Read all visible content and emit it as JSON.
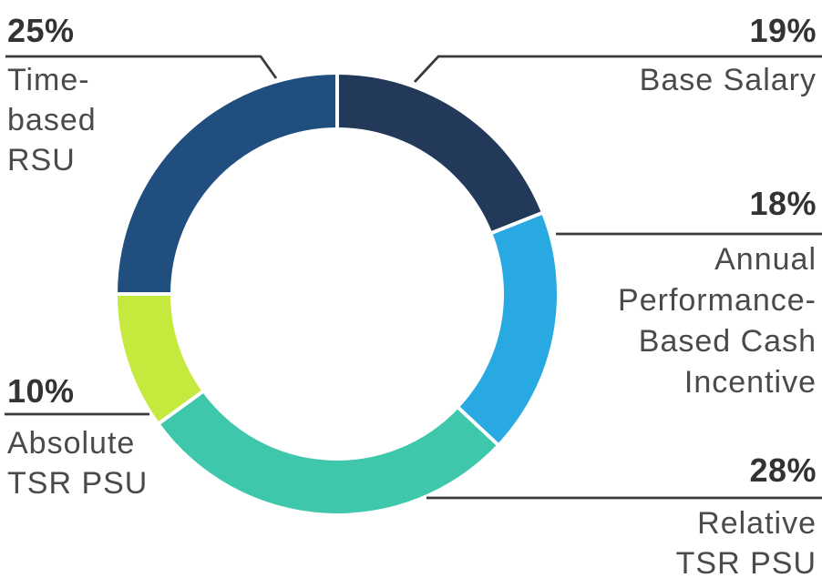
{
  "chart_data": {
    "type": "pie",
    "subtype": "donut",
    "title": "",
    "unit": "%",
    "direction": "clockwise",
    "start_angle_deg": 0,
    "inner_radius_ratio": 0.76,
    "legend_position": "callout-labels",
    "categories": [
      "Base Salary",
      "Annual Performance-Based Cash Incentive",
      "Relative TSR PSU",
      "Absolute TSR PSU",
      "Time-based RSU"
    ],
    "values": [
      19,
      18,
      28,
      10,
      25
    ],
    "segments": [
      {
        "id": "base-salary",
        "label": "Base Salary",
        "value": 19,
        "pct_label": "19%",
        "color": "#22395A",
        "label_lines": [
          "Base Salary"
        ],
        "callout_side": "top-right"
      },
      {
        "id": "annual-performance-based-cash-incentive",
        "label": "Annual Performance-Based Cash Incentive",
        "value": 18,
        "pct_label": "18%",
        "color": "#29A9E1",
        "label_lines": [
          "Annual",
          "Performance-",
          "Based Cash",
          "Incentive"
        ],
        "callout_side": "right"
      },
      {
        "id": "relative-tsr-psu",
        "label": "Relative TSR PSU",
        "value": 28,
        "pct_label": "28%",
        "color": "#3FC7AB",
        "label_lines": [
          "Relative",
          "TSR PSU"
        ],
        "callout_side": "bottom-right"
      },
      {
        "id": "absolute-tsr-psu",
        "label": "Absolute TSR PSU",
        "value": 10,
        "pct_label": "10%",
        "color": "#C6E93E",
        "label_lines": [
          "Absolute",
          "TSR PSU"
        ],
        "callout_side": "bottom-left"
      },
      {
        "id": "time-based-rsu",
        "label": "Time-based RSU",
        "value": 25,
        "pct_label": "25%",
        "color": "#1F4E7F",
        "label_lines": [
          "Time-",
          "based",
          "RSU"
        ],
        "callout_side": "top-left"
      }
    ],
    "style_colors": {
      "leader_line": "#3A3A3A",
      "percent_text": "#333333",
      "label_text": "#4A4A4A",
      "separator": "#FFFFFF",
      "background": "#FFFFFF"
    }
  }
}
